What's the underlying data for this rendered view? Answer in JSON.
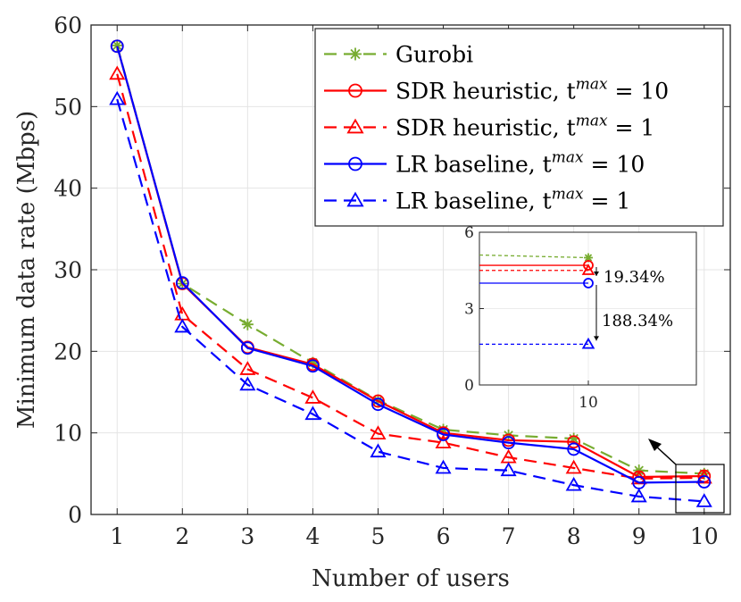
{
  "chart_data": {
    "type": "line",
    "title": "",
    "xlabel": "Number of users",
    "ylabel": "Minimum data rate (Mbps)",
    "xlim": [
      0.6,
      10.4
    ],
    "ylim": [
      0,
      60
    ],
    "xticks": [
      "1",
      "2",
      "3",
      "4",
      "5",
      "6",
      "7",
      "8",
      "9",
      "10"
    ],
    "yticks": [
      "0",
      "10",
      "20",
      "30",
      "40",
      "50",
      "60"
    ],
    "x": [
      1,
      2,
      3,
      4,
      5,
      6,
      7,
      8,
      9,
      10
    ],
    "grid": true,
    "legend_position": "top-right",
    "series": [
      {
        "name": "Gurobi",
        "legend_text": "Gurobi",
        "legend_sup": "",
        "legend_tail": "",
        "color": "#77AC30",
        "dash": "dashed",
        "marker": "star",
        "values": [
          57.5,
          28.3,
          23.3,
          18.6,
          14.0,
          10.4,
          9.7,
          9.3,
          5.4,
          5.0
        ]
      },
      {
        "name": "SDR heuristic, t^max = 10",
        "legend_text": "SDR heuristic, t",
        "legend_sup": "max",
        "legend_tail": " = 10",
        "color": "#FF0000",
        "dash": "solid",
        "marker": "circle",
        "values": [
          57.4,
          28.3,
          20.5,
          18.4,
          13.9,
          10.0,
          9.1,
          8.9,
          4.6,
          4.7
        ]
      },
      {
        "name": "SDR heuristic, t^max = 1",
        "legend_text": "SDR heuristic, t",
        "legend_sup": "max",
        "legend_tail": " = 1",
        "color": "#FF0000",
        "dash": "dashed",
        "marker": "triangle",
        "values": [
          54.0,
          24.5,
          17.8,
          14.3,
          9.9,
          8.8,
          7.0,
          5.7,
          4.4,
          4.5
        ]
      },
      {
        "name": "LR baseline, t^max = 10",
        "legend_text": "LR baseline, t",
        "legend_sup": "max",
        "legend_tail": " = 10",
        "color": "#0000FF",
        "dash": "solid",
        "marker": "circle",
        "values": [
          57.4,
          28.4,
          20.4,
          18.2,
          13.5,
          9.8,
          8.8,
          8.0,
          3.9,
          4.0
        ]
      },
      {
        "name": "LR baseline, t^max = 1",
        "legend_text": "LR baseline, t",
        "legend_sup": "max",
        "legend_tail": " = 1",
        "color": "#0000FF",
        "dash": "dashed",
        "marker": "triangle",
        "values": [
          50.9,
          23.0,
          15.9,
          12.3,
          7.7,
          5.7,
          5.4,
          3.6,
          2.2,
          1.6
        ]
      }
    ],
    "inset": {
      "ylim": [
        0,
        6
      ],
      "yticks": [
        "0",
        "3",
        "6"
      ],
      "xticks": [
        "10"
      ],
      "series_values": [
        5.0,
        4.7,
        4.5,
        4.0,
        1.6
      ],
      "annotations": [
        "19.34%",
        "188.34%"
      ]
    }
  }
}
